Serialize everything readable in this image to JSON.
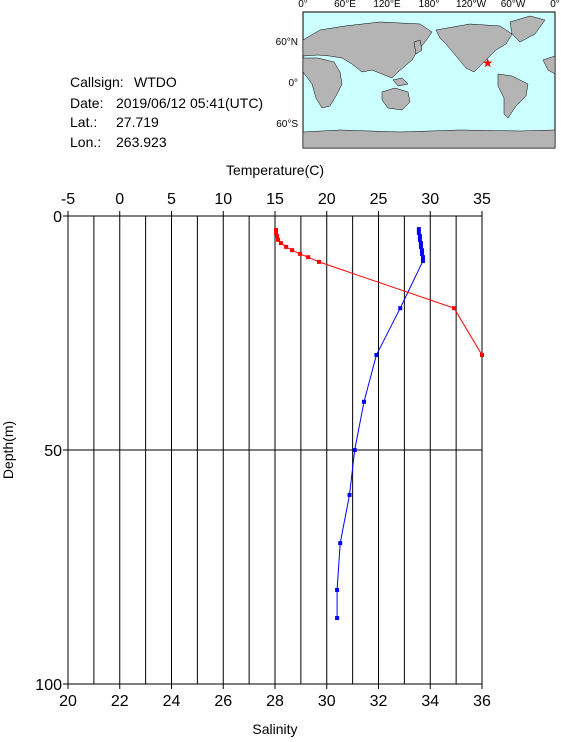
{
  "info": {
    "callsign_label": "Callsign:",
    "callsign": "WTDO",
    "date_label": "Date:",
    "date": "2019/06/12 05:41(UTC)",
    "lat_label": "Lat.:",
    "lat": 27.719,
    "lon_label": "Lon.:",
    "lon": 263.923
  },
  "map": {
    "lon_labels": [
      "0°",
      "60°E",
      "120°E",
      "180°",
      "120°W",
      "60°W",
      "0°"
    ],
    "lat_labels": [
      "60°N",
      "0°",
      "60°S"
    ],
    "marker_color": "#ff0000"
  },
  "chart_data": {
    "type": "line",
    "x_label": "Salinity",
    "x2_label": "Temperature(C)",
    "y_label": "Depth(m)",
    "xlim": [
      20,
      36
    ],
    "xticks": [
      20,
      22,
      24,
      26,
      28,
      30,
      32,
      34,
      36
    ],
    "x2lim": [
      -5,
      35
    ],
    "x2ticks": [
      -5,
      0,
      5,
      10,
      15,
      20,
      25,
      30,
      35
    ],
    "ylim": [
      0,
      100
    ],
    "yticks": [
      0,
      50,
      100
    ],
    "y_inverted": true,
    "grid": true,
    "series": [
      {
        "axis": "x2",
        "color": "#0000ff",
        "depths": [
          2.8,
          3.6,
          4.3,
          5.1,
          5.8,
          6.6,
          7.3,
          8.1,
          8.8,
          9.6,
          19.7,
          29.7,
          39.7,
          50,
          59.6,
          69.9,
          79.9,
          85.9
        ],
        "values": [
          28.9,
          28.9,
          29.0,
          29.0,
          29.1,
          29.1,
          29.2,
          29.2,
          29.3,
          29.3,
          27.1,
          24.8,
          23.6,
          22.7,
          22.2,
          21.3,
          21.0,
          21.0
        ]
      },
      {
        "axis": "x",
        "color": "#ff0000",
        "depths": [
          3.0,
          3.6,
          4.3,
          5.1,
          5.8,
          6.6,
          7.3,
          8.1,
          8.8,
          9.8,
          19.7,
          29.7
        ],
        "values": [
          28.04,
          28.04,
          28.08,
          28.12,
          28.23,
          28.43,
          28.66,
          28.97,
          29.28,
          29.7,
          34.92,
          36.0
        ]
      }
    ]
  }
}
